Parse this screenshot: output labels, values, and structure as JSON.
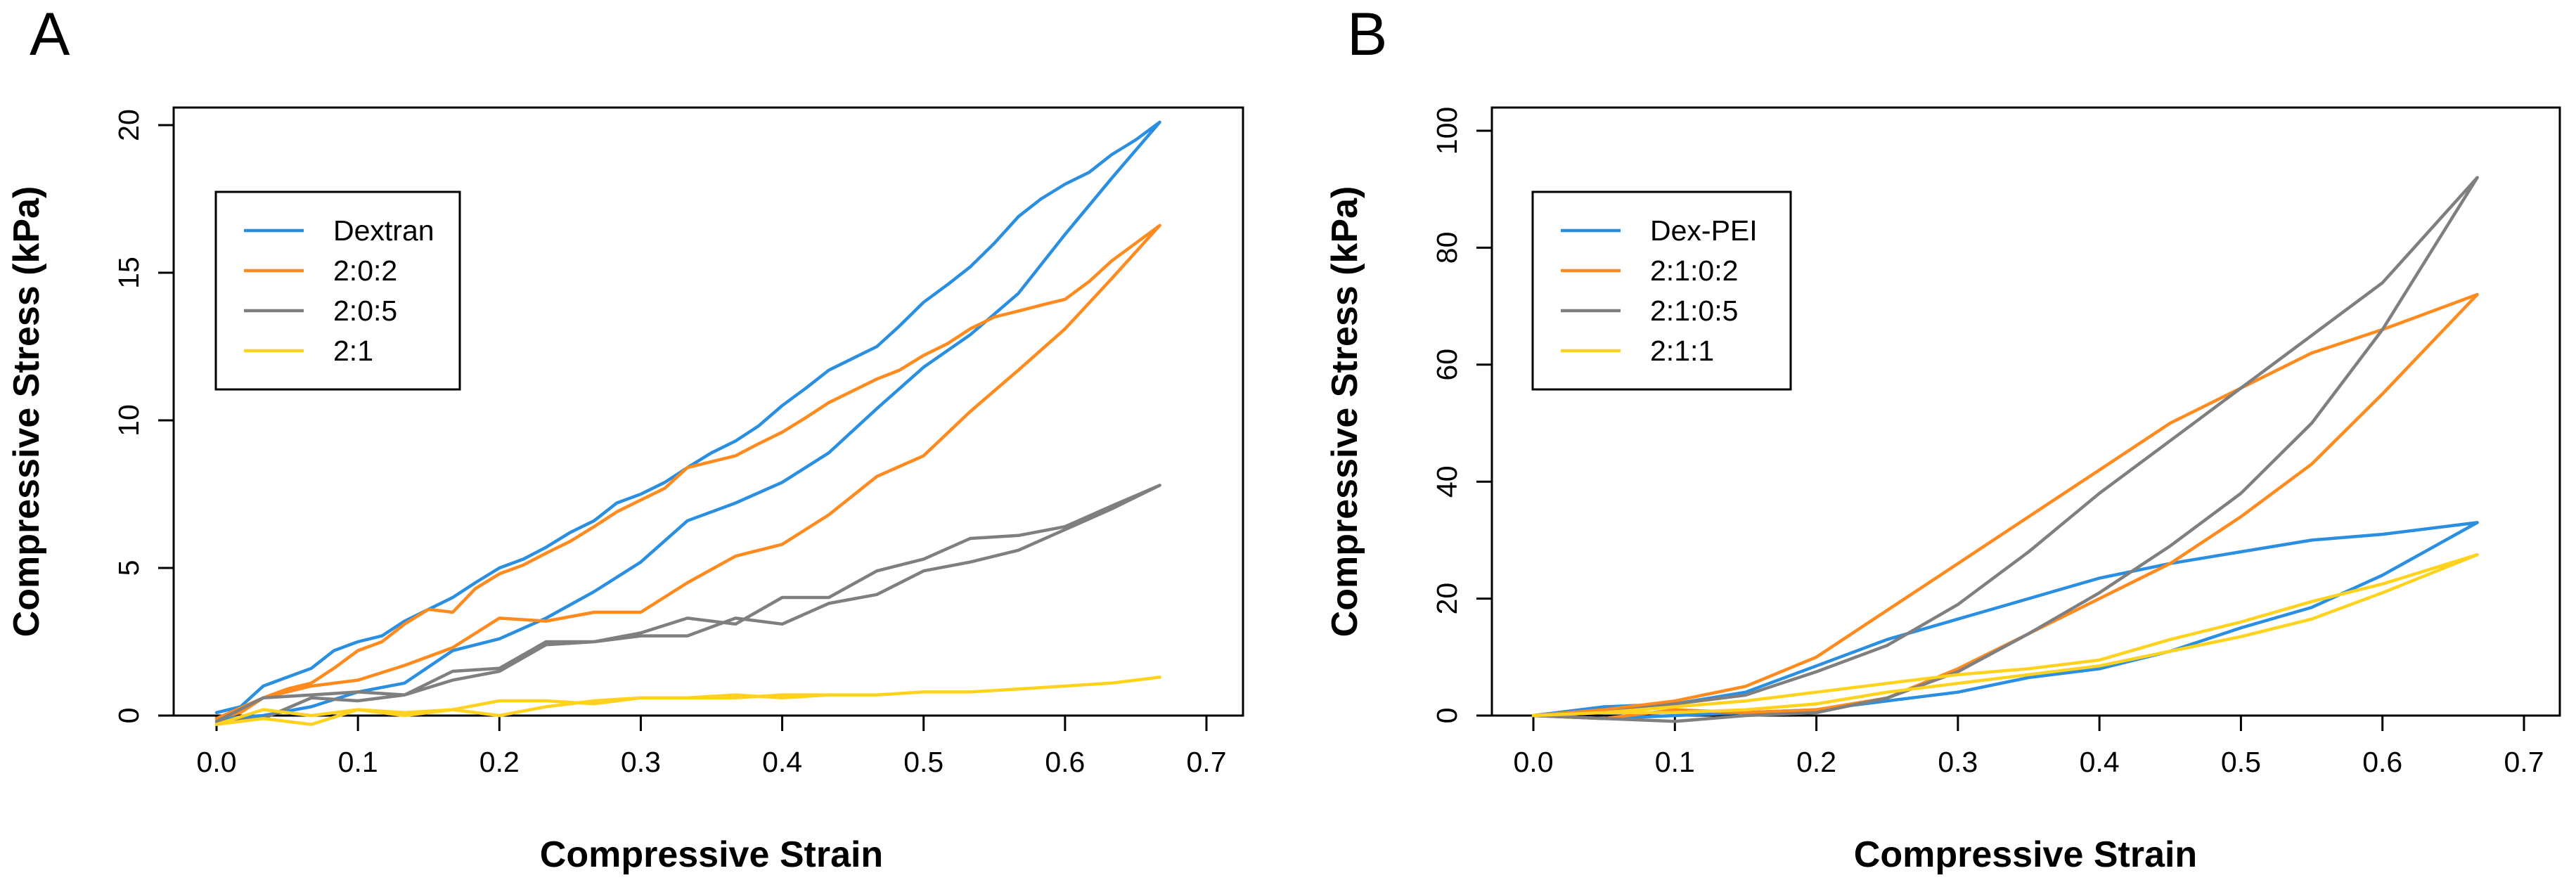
{
  "chart_data": [
    {
      "panel_label": "A",
      "type": "line",
      "xlabel": "Compressive Strain",
      "ylabel": "Compressive Stress (kPa)",
      "xlim": [
        0,
        0.7
      ],
      "ylim": [
        0,
        20
      ],
      "x_ticks": [
        0,
        0.1,
        0.2,
        0.3,
        0.4,
        0.5,
        0.6,
        0.7
      ],
      "x_tick_labels": [
        "0.0",
        "0.1",
        "0.2",
        "0.3",
        "0.4",
        "0.5",
        "0.6",
        "0.7"
      ],
      "y_ticks": [
        0,
        5,
        10,
        15,
        20
      ],
      "y_tick_labels": [
        "0",
        "5",
        "10",
        "15",
        "20"
      ],
      "legend_position": "top-left",
      "grid": false,
      "series": [
        {
          "name": "Dextran",
          "color": "#2a8fe0",
          "x": [
            0,
            0.017,
            0.033,
            0.05,
            0.067,
            0.083,
            0.1,
            0.117,
            0.133,
            0.15,
            0.167,
            0.183,
            0.2,
            0.217,
            0.233,
            0.25,
            0.267,
            0.283,
            0.3,
            0.317,
            0.333,
            0.35,
            0.367,
            0.383,
            0.4,
            0.417,
            0.433,
            0.45,
            0.467,
            0.483,
            0.5,
            0.517,
            0.533,
            0.55,
            0.567,
            0.583,
            0.6,
            0.617,
            0.633,
            0.65,
            0.667,
            0.633,
            0.6,
            0.567,
            0.533,
            0.5,
            0.467,
            0.433,
            0.4,
            0.367,
            0.333,
            0.3,
            0.267,
            0.233,
            0.2,
            0.167,
            0.133,
            0.1,
            0.067,
            0.033,
            0
          ],
          "y": [
            0.1,
            0.3,
            1.0,
            1.3,
            1.6,
            2.2,
            2.5,
            2.7,
            3.2,
            3.6,
            4.0,
            4.5,
            5.0,
            5.3,
            5.7,
            6.2,
            6.6,
            7.2,
            7.5,
            7.9,
            8.4,
            8.9,
            9.3,
            9.8,
            10.5,
            11.1,
            11.7,
            12.1,
            12.5,
            13.2,
            14.0,
            14.6,
            15.2,
            16.0,
            16.9,
            17.5,
            18.0,
            18.4,
            19.0,
            19.5,
            20.1,
            18.2,
            16.3,
            14.3,
            12.9,
            11.8,
            10.4,
            8.9,
            7.9,
            7.2,
            6.6,
            5.2,
            4.2,
            3.3,
            2.6,
            2.2,
            1.1,
            0.8,
            0.3,
            0.0,
            -0.1
          ]
        },
        {
          "name": "2:0:2",
          "color": "#ff8a1e",
          "x": [
            0,
            0.017,
            0.033,
            0.05,
            0.067,
            0.083,
            0.1,
            0.117,
            0.133,
            0.15,
            0.167,
            0.183,
            0.2,
            0.217,
            0.233,
            0.25,
            0.267,
            0.283,
            0.3,
            0.317,
            0.333,
            0.35,
            0.367,
            0.383,
            0.4,
            0.417,
            0.433,
            0.45,
            0.467,
            0.483,
            0.5,
            0.517,
            0.533,
            0.55,
            0.567,
            0.583,
            0.6,
            0.617,
            0.633,
            0.65,
            0.667,
            0.633,
            0.6,
            0.567,
            0.533,
            0.5,
            0.467,
            0.433,
            0.4,
            0.367,
            0.333,
            0.3,
            0.267,
            0.233,
            0.2,
            0.167,
            0.133,
            0.1,
            0.067,
            0.033,
            0
          ],
          "y": [
            -0.1,
            0.1,
            0.6,
            0.9,
            1.1,
            1.6,
            2.2,
            2.5,
            3.1,
            3.6,
            3.5,
            4.3,
            4.8,
            5.1,
            5.5,
            5.9,
            6.4,
            6.9,
            7.3,
            7.7,
            8.4,
            8.6,
            8.8,
            9.2,
            9.6,
            10.1,
            10.6,
            11.0,
            11.4,
            11.7,
            12.2,
            12.6,
            13.1,
            13.5,
            13.7,
            13.9,
            14.1,
            14.7,
            15.4,
            16.0,
            16.6,
            14.8,
            13.1,
            11.7,
            10.3,
            8.8,
            8.1,
            6.8,
            5.8,
            5.4,
            4.5,
            3.5,
            3.5,
            3.2,
            3.3,
            2.3,
            1.7,
            1.2,
            1.0,
            0.6,
            -0.1
          ]
        },
        {
          "name": "2:0:5",
          "color": "#7f7f7f",
          "x": [
            0,
            0.033,
            0.067,
            0.1,
            0.133,
            0.167,
            0.2,
            0.233,
            0.267,
            0.3,
            0.333,
            0.367,
            0.4,
            0.433,
            0.467,
            0.5,
            0.533,
            0.567,
            0.6,
            0.633,
            0.667,
            0.633,
            0.6,
            0.567,
            0.533,
            0.5,
            0.467,
            0.433,
            0.4,
            0.367,
            0.333,
            0.3,
            0.267,
            0.233,
            0.2,
            0.167,
            0.133,
            0.1,
            0.067,
            0.033,
            0
          ],
          "y": [
            -0.2,
            -0.1,
            0.6,
            0.5,
            0.7,
            1.5,
            1.6,
            2.5,
            2.5,
            2.8,
            3.3,
            3.1,
            4.0,
            4.0,
            4.9,
            5.3,
            6.0,
            6.1,
            6.4,
            7.1,
            7.8,
            7.0,
            6.3,
            5.6,
            5.2,
            4.9,
            4.1,
            3.8,
            3.1,
            3.3,
            2.7,
            2.7,
            2.5,
            2.4,
            1.5,
            1.2,
            0.7,
            0.8,
            0.7,
            0.6,
            -0.2
          ]
        },
        {
          "name": "2:1",
          "color": "#ffd21e",
          "x": [
            0,
            0.033,
            0.067,
            0.1,
            0.133,
            0.167,
            0.2,
            0.233,
            0.267,
            0.3,
            0.333,
            0.367,
            0.4,
            0.433,
            0.467,
            0.5,
            0.533,
            0.567,
            0.6,
            0.633,
            0.667,
            0.633,
            0.6,
            0.567,
            0.533,
            0.5,
            0.467,
            0.433,
            0.4,
            0.367,
            0.333,
            0.3,
            0.267,
            0.233,
            0.2,
            0.167,
            0.133,
            0.1,
            0.067,
            0.033,
            0
          ],
          "y": [
            -0.3,
            -0.1,
            -0.3,
            0.2,
            0.1,
            0.2,
            0.5,
            0.5,
            0.4,
            0.6,
            0.6,
            0.7,
            0.6,
            0.7,
            0.7,
            0.8,
            0.8,
            0.9,
            1.0,
            1.1,
            1.3,
            1.1,
            1.0,
            0.9,
            0.8,
            0.8,
            0.7,
            0.7,
            0.7,
            0.6,
            0.6,
            0.6,
            0.5,
            0.3,
            0.0,
            0.2,
            0.0,
            0.2,
            0.0,
            0.2,
            -0.3
          ]
        }
      ]
    },
    {
      "panel_label": "B",
      "type": "line",
      "xlabel": "Compressive Strain",
      "ylabel": "Compressive Stress (kPa)",
      "xlim": [
        0,
        0.7
      ],
      "ylim": [
        0,
        100
      ],
      "x_ticks": [
        0,
        0.1,
        0.2,
        0.3,
        0.4,
        0.5,
        0.6,
        0.7
      ],
      "x_tick_labels": [
        "0.0",
        "0.1",
        "0.2",
        "0.3",
        "0.4",
        "0.5",
        "0.6",
        "0.7"
      ],
      "y_ticks": [
        0,
        20,
        40,
        60,
        80,
        100
      ],
      "y_tick_labels": [
        "0",
        "20",
        "40",
        "60",
        "80",
        "100"
      ],
      "legend_position": "top-left",
      "grid": false,
      "series": [
        {
          "name": "Dex-PEI",
          "color": "#2a8fe0",
          "x": [
            0,
            0.05,
            0.1,
            0.15,
            0.2,
            0.25,
            0.3,
            0.35,
            0.4,
            0.45,
            0.5,
            0.55,
            0.6,
            0.667,
            0.6,
            0.55,
            0.5,
            0.45,
            0.4,
            0.35,
            0.3,
            0.25,
            0.2,
            0.15,
            0.1,
            0.05,
            0
          ],
          "y": [
            0,
            1.5,
            2.0,
            4.0,
            8.5,
            13.0,
            16.5,
            20.0,
            23.5,
            26.0,
            28.0,
            30.0,
            31.0,
            33.0,
            24.0,
            18.5,
            15.0,
            11.0,
            8.0,
            6.5,
            4.0,
            2.5,
            1.0,
            0.5,
            0.0,
            -0.5,
            0
          ]
        },
        {
          "name": "2:1:0:2",
          "color": "#ff8a1e",
          "x": [
            0,
            0.05,
            0.1,
            0.15,
            0.2,
            0.25,
            0.3,
            0.35,
            0.4,
            0.45,
            0.5,
            0.55,
            0.6,
            0.667,
            0.6,
            0.55,
            0.5,
            0.45,
            0.4,
            0.35,
            0.3,
            0.25,
            0.2,
            0.15,
            0.1,
            0.05,
            0
          ],
          "y": [
            0,
            1.0,
            2.5,
            5.0,
            10.0,
            18.0,
            26.0,
            34.0,
            42.0,
            50.0,
            56.0,
            62.0,
            66.0,
            72.0,
            55.0,
            43.0,
            34.0,
            26.0,
            20.0,
            14.0,
            8.0,
            3.0,
            1.0,
            0.5,
            1.0,
            -0.5,
            0
          ]
        },
        {
          "name": "2:1:0:5",
          "color": "#7f7f7f",
          "x": [
            0,
            0.05,
            0.1,
            0.15,
            0.2,
            0.25,
            0.3,
            0.35,
            0.4,
            0.45,
            0.5,
            0.55,
            0.6,
            0.667,
            0.6,
            0.55,
            0.5,
            0.45,
            0.4,
            0.35,
            0.3,
            0.25,
            0.2,
            0.15,
            0.1,
            0.05,
            0
          ],
          "y": [
            0,
            0.5,
            2.0,
            3.5,
            7.5,
            12.0,
            19.0,
            28.0,
            38.0,
            47.0,
            56.0,
            65.0,
            74.0,
            92.0,
            66.0,
            50.0,
            38.0,
            29.0,
            21.0,
            14.0,
            7.5,
            3.0,
            0.5,
            0.0,
            -1.0,
            -0.5,
            0
          ]
        },
        {
          "name": "2:1:1",
          "color": "#ffd21e",
          "x": [
            0,
            0.05,
            0.1,
            0.15,
            0.2,
            0.25,
            0.3,
            0.35,
            0.4,
            0.45,
            0.5,
            0.55,
            0.6,
            0.667,
            0.6,
            0.55,
            0.5,
            0.45,
            0.4,
            0.35,
            0.3,
            0.25,
            0.2,
            0.15,
            0.1,
            0.05,
            0
          ],
          "y": [
            0,
            0.5,
            1.5,
            2.5,
            4.0,
            5.5,
            7.0,
            8.0,
            9.5,
            13.0,
            16.0,
            19.5,
            22.5,
            27.5,
            21.0,
            16.5,
            13.5,
            11.0,
            8.5,
            7.0,
            5.5,
            4.0,
            2.0,
            1.0,
            0.5,
            0.5,
            0
          ]
        }
      ]
    }
  ]
}
